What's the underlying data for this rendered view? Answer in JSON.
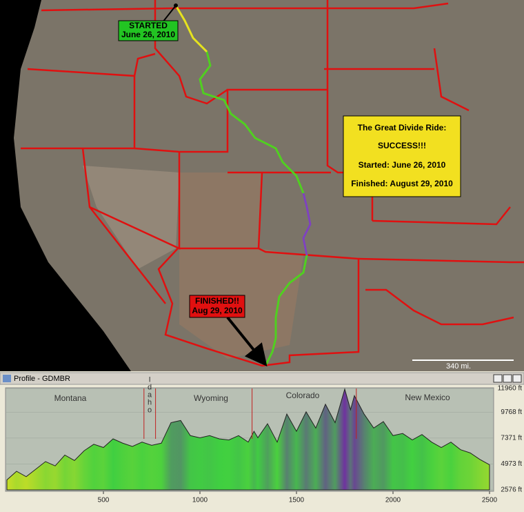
{
  "map": {
    "started_box": [
      "STARTED",
      "June 26, 2010"
    ],
    "finished_box": [
      "FINISHED!!",
      "Aug 29, 2010"
    ],
    "summary_box": [
      "The Great Divide Ride:",
      "SUCCESS!!!",
      "Started: June 26, 2010",
      "Finished: August 29, 2010"
    ],
    "scale_label": "340 mi."
  },
  "window": {
    "title": "Profile - GDMBR"
  },
  "chart_data": {
    "type": "area",
    "regions": [
      "Montana",
      "Idaho",
      "Wyoming",
      "Colorado",
      "New Mexico"
    ],
    "borders": [
      710,
      770,
      1270,
      1810
    ],
    "x": [
      0,
      50,
      100,
      150,
      200,
      250,
      300,
      350,
      400,
      450,
      500,
      550,
      600,
      650,
      700,
      750,
      800,
      850,
      900,
      950,
      1000,
      1050,
      1100,
      1150,
      1200,
      1250,
      1280,
      1300,
      1350,
      1400,
      1450,
      1500,
      1550,
      1600,
      1650,
      1700,
      1750,
      1780,
      1800,
      1850,
      1900,
      1950,
      2000,
      2050,
      2100,
      2150,
      2200,
      2250,
      2300,
      2350,
      2400,
      2450,
      2500
    ],
    "values": [
      3500,
      4300,
      3800,
      4500,
      5200,
      4800,
      5800,
      5300,
      6200,
      6800,
      6500,
      7300,
      6900,
      6600,
      7000,
      6700,
      6900,
      8800,
      9000,
      7600,
      7400,
      7600,
      7300,
      7200,
      7600,
      7000,
      8000,
      7400,
      8700,
      7000,
      9600,
      8000,
      9800,
      8300,
      10500,
      8800,
      11900,
      10000,
      11300,
      9600,
      8300,
      8900,
      7600,
      7800,
      7200,
      7700,
      7000,
      6500,
      7000,
      6300,
      6000,
      5400,
      4900
    ],
    "xlim": [
      0,
      2500
    ],
    "xticks": [
      500,
      1000,
      1500,
      2000,
      2500
    ],
    "ylim": [
      2576,
      11960
    ],
    "yticks": [
      {
        "value": 2576,
        "label": "2576 ft"
      },
      {
        "value": 4973,
        "label": "4973 ft"
      },
      {
        "value": 7371,
        "label": "7371 ft"
      },
      {
        "value": 9768,
        "label": "9768 ft"
      },
      {
        "value": 11960,
        "label": "11960 ft"
      }
    ]
  }
}
